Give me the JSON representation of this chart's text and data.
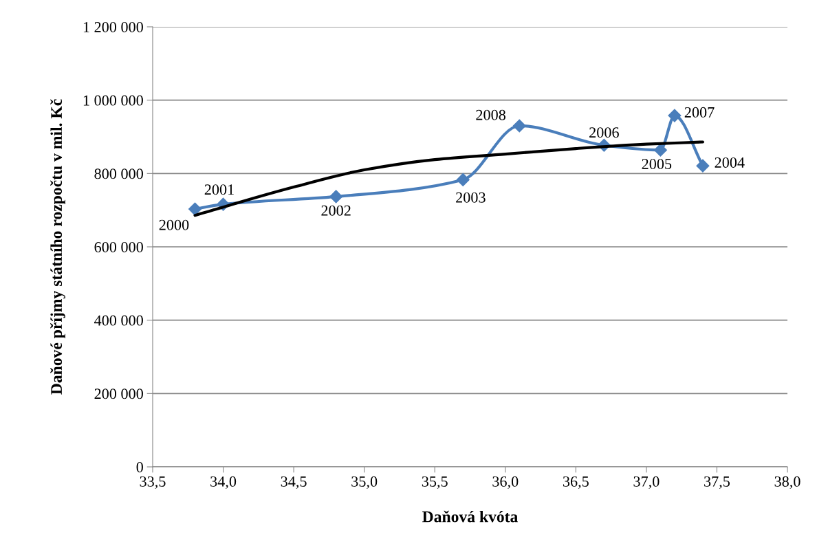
{
  "chart_data": {
    "type": "line",
    "xlabel": "Daňová kvóta",
    "ylabel": "Daňové příjmy státního rozpočtu v mil. Kč",
    "xlim": [
      33.5,
      38.0
    ],
    "xticks": [
      {
        "value": 33.5,
        "label": "33,5"
      },
      {
        "value": 34.0,
        "label": "34,0"
      },
      {
        "value": 34.5,
        "label": "34,5"
      },
      {
        "value": 35.0,
        "label": "35,0"
      },
      {
        "value": 35.5,
        "label": "35,5"
      },
      {
        "value": 36.0,
        "label": "36,0"
      },
      {
        "value": 36.5,
        "label": "36,5"
      },
      {
        "value": 37.0,
        "label": "37,0"
      },
      {
        "value": 37.5,
        "label": "37,5"
      },
      {
        "value": 38.0,
        "label": "38,0"
      }
    ],
    "ylim": [
      0,
      1200000
    ],
    "yticks": [
      0,
      {
        "value": 200000,
        "label": "200 000"
      },
      {
        "value": 400000,
        "label": "400 000"
      },
      {
        "value": 600000,
        "label": "600 000"
      },
      {
        "value": 800000,
        "label": "800 000"
      },
      {
        "value": 1000000,
        "label": "1 000 000"
      },
      {
        "value": 1200000,
        "label": "1 200 000"
      }
    ],
    "grid": "y",
    "annotations": [
      {
        "text": "2000",
        "x": 33.8,
        "y": 703000
      },
      {
        "text": "2001",
        "x": 34.0,
        "y": 716000
      },
      {
        "text": "2002",
        "x": 34.8,
        "y": 737000
      },
      {
        "text": "2003",
        "x": 35.7,
        "y": 783000
      },
      {
        "text": "2008",
        "x": 36.1,
        "y": 930000
      },
      {
        "text": "2006",
        "x": 36.7,
        "y": 877000
      },
      {
        "text": "2005",
        "x": 37.1,
        "y": 864000
      },
      {
        "text": "2007",
        "x": 37.2,
        "y": 958000
      },
      {
        "text": "2004",
        "x": 37.4,
        "y": 821000
      }
    ],
    "legend": false,
    "series": [
      {
        "color": "#4a7ebb",
        "marker": "diamond",
        "x": [
          33.8,
          34.0,
          34.8,
          35.7,
          36.1,
          36.7,
          37.1,
          37.2,
          37.4
        ],
        "values": [
          703000,
          716000,
          737000,
          783000,
          930000,
          877000,
          864000,
          958000,
          821000
        ]
      },
      {
        "color": "#000000",
        "marker": "none",
        "x": [
          33.8,
          34.5,
          35.0,
          35.5,
          36.0,
          36.5,
          37.0,
          37.4
        ],
        "values": [
          686000,
          763000,
          810000,
          838000,
          853000,
          868000,
          880000,
          886000
        ]
      }
    ]
  }
}
